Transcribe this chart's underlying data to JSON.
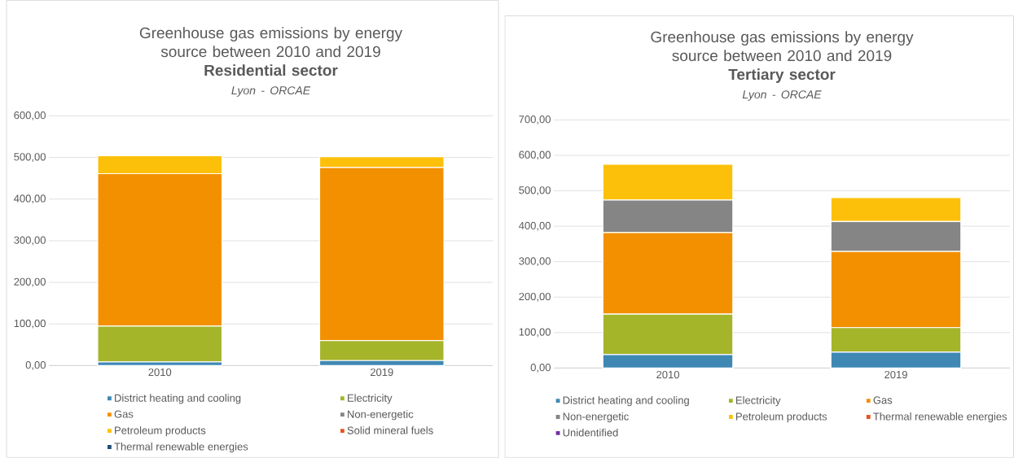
{
  "chart_data": [
    {
      "type": "bar",
      "stacked": true,
      "title": "Greenhouse gas emissions by energy source  between 2010 and 2019",
      "subtitle": "Residential sector",
      "annotations": [
        "Lyon - ORCAE"
      ],
      "categories": [
        "2010",
        "2019"
      ],
      "series": [
        {
          "name": "District heating and cooling",
          "color": "#3f88b4",
          "values": [
            9,
            12
          ]
        },
        {
          "name": "Electricity",
          "color": "#a5b52a",
          "values": [
            86,
            48
          ]
        },
        {
          "name": "Gas",
          "color": "#f39000",
          "values": [
            366,
            416
          ]
        },
        {
          "name": "Non-energetic",
          "color": "#858585",
          "values": [
            0,
            0
          ]
        },
        {
          "name": "Petroleum products",
          "color": "#fdc00a",
          "values": [
            43,
            26
          ]
        },
        {
          "name": "Solid mineral fuels",
          "color": "#e35420",
          "values": [
            0,
            0
          ]
        },
        {
          "name": "Thermal renewable energies",
          "color": "#1f4e79",
          "values": [
            0,
            0
          ]
        }
      ],
      "ylim": [
        0,
        600
      ],
      "yticks": [
        {
          "value": 0,
          "label": "0,00"
        },
        {
          "value": 100,
          "label": "100,00"
        },
        {
          "value": 200,
          "label": "200,00"
        },
        {
          "value": 300,
          "label": "300,00"
        },
        {
          "value": 400,
          "label": "400,00"
        },
        {
          "value": 500,
          "label": "500,00"
        },
        {
          "value": 600,
          "label": "600,00"
        }
      ],
      "grid": "y",
      "legend": "bottom"
    },
    {
      "type": "bar",
      "stacked": true,
      "title": "Greenhouse gas emissions by energy source  between 2010 and 2019",
      "subtitle": "Tertiary sector",
      "annotations": [
        "Lyon - ORCAE"
      ],
      "categories": [
        "2010",
        "2019"
      ],
      "series": [
        {
          "name": "District heating and cooling",
          "color": "#3f88b4",
          "values": [
            38,
            45
          ]
        },
        {
          "name": "Electricity",
          "color": "#a5b52a",
          "values": [
            114,
            69
          ]
        },
        {
          "name": "Gas",
          "color": "#f39000",
          "values": [
            230,
            215
          ]
        },
        {
          "name": "Non-energetic",
          "color": "#858585",
          "values": [
            92,
            84
          ]
        },
        {
          "name": "Petroleum products",
          "color": "#fdc00a",
          "values": [
            101,
            68
          ]
        },
        {
          "name": "Thermal renewable energies",
          "color": "#e35420",
          "values": [
            0,
            0
          ]
        },
        {
          "name": "Unidentified",
          "color": "#7030a0",
          "values": [
            0,
            0
          ]
        }
      ],
      "ylim": [
        0,
        700
      ],
      "yticks": [
        {
          "value": 0,
          "label": "0,00"
        },
        {
          "value": 100,
          "label": "100,00"
        },
        {
          "value": 200,
          "label": "200,00"
        },
        {
          "value": 300,
          "label": "300,00"
        },
        {
          "value": 400,
          "label": "400,00"
        },
        {
          "value": 500,
          "label": "500,00"
        },
        {
          "value": 600,
          "label": "600,00"
        },
        {
          "value": 700,
          "label": "700,00"
        }
      ],
      "grid": "y",
      "legend": "bottom"
    }
  ]
}
